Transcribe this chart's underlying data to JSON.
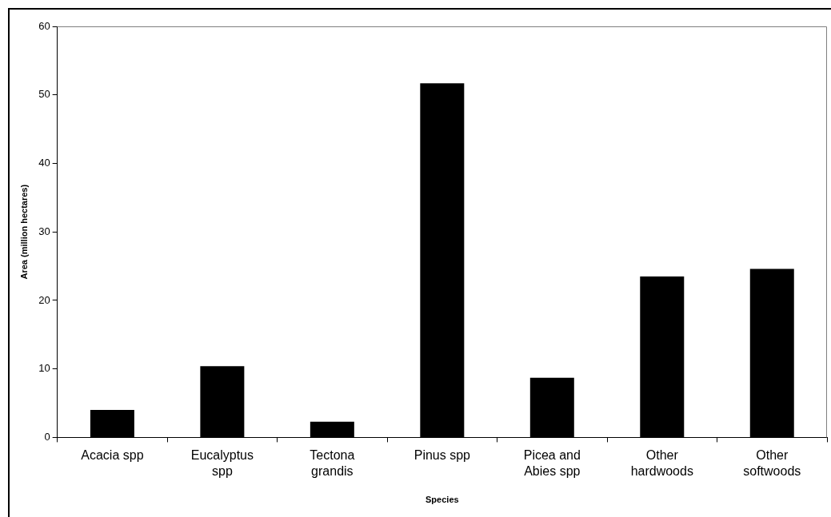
{
  "chart_data": {
    "type": "bar",
    "xlabel": "Species",
    "ylabel": "Area (million hectares)",
    "categories": [
      "Acacia spp",
      "Eucalyptus spp",
      "Tectona grandis",
      "Pinus spp",
      "Picea and Abies spp",
      "Other hardwoods",
      "Other softwoods"
    ],
    "values": [
      4.0,
      10.4,
      2.3,
      51.7,
      8.7,
      23.5,
      24.6
    ],
    "color": "#000000",
    "ylim": [
      0,
      60
    ],
    "yticks": [
      0,
      10,
      20,
      30,
      40,
      50,
      60
    ],
    "grid": false,
    "legend": false
  }
}
